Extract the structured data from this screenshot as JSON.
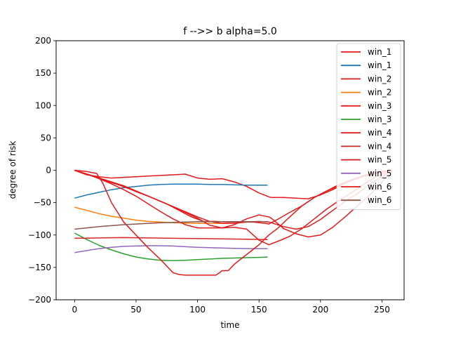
{
  "chart_data": {
    "type": "line",
    "title": "f -->> b  alpha=5.0",
    "xlabel": "time",
    "ylabel": "degree of risk",
    "xlim": [
      -15,
      268
    ],
    "ylim": [
      -200,
      200
    ],
    "xticks": [
      0,
      50,
      100,
      150,
      200,
      250
    ],
    "yticks": [
      -200,
      -150,
      -100,
      -50,
      0,
      50,
      100,
      150,
      200
    ],
    "grid": false,
    "legend_position": "top-right",
    "series": [
      {
        "name": "win_1",
        "color": "#e41a1c",
        "x": [
          0,
          10,
          20,
          30,
          40,
          50,
          60,
          70,
          80,
          90,
          100,
          110,
          120,
          130,
          140,
          150,
          158,
          160,
          165,
          170,
          180,
          190,
          200,
          210,
          220,
          230,
          240,
          250,
          258
        ],
        "y": [
          0,
          -7,
          -10,
          -12,
          -11,
          -10,
          -9,
          -8,
          -7,
          -6,
          -12,
          -14,
          -13,
          -18,
          -25,
          -35,
          -41,
          -42,
          -42,
          -42,
          -43,
          -44,
          -38,
          -30,
          -20,
          -12,
          -7,
          -3,
          0
        ]
      },
      {
        "name": "win_1",
        "color": "#1f77b4",
        "x": [
          0,
          10,
          20,
          30,
          40,
          50,
          60,
          70,
          80,
          90,
          100,
          110,
          120,
          130,
          140,
          150,
          157
        ],
        "y": [
          -43,
          -38,
          -34,
          -30,
          -27,
          -25,
          -23,
          -22,
          -21.5,
          -21.5,
          -21.5,
          -22,
          -22,
          -22.5,
          -23,
          -23,
          -23
        ]
      },
      {
        "name": "win_2",
        "color": "#e41a1c",
        "x": [
          0,
          10,
          18,
          25,
          35,
          45,
          55,
          65,
          75,
          85,
          95,
          105,
          115,
          125,
          135,
          145,
          155,
          158,
          165,
          175,
          185,
          195,
          205,
          215,
          225,
          235,
          245,
          258
        ],
        "y": [
          0,
          -6,
          -10,
          -16,
          -22,
          -29,
          -36,
          -44,
          -52,
          -62,
          -72,
          -79,
          -79,
          -80,
          -80,
          -80,
          -82,
          -83,
          -76,
          -65,
          -55,
          -42,
          -32,
          -24,
          -16,
          -9,
          -4,
          0
        ]
      },
      {
        "name": "win_2",
        "color": "#ff7f0e",
        "x": [
          0,
          10,
          20,
          30,
          40,
          50,
          60,
          70,
          80,
          90,
          100,
          110,
          120,
          125
        ],
        "y": [
          -57,
          -62,
          -67,
          -71,
          -74,
          -77,
          -79,
          -80,
          -81,
          -81.5,
          -82,
          -82,
          -82,
          -82
        ]
      },
      {
        "name": "win_3",
        "color": "#e41a1c",
        "x": [
          0,
          10,
          20,
          30,
          40,
          50,
          60,
          70,
          80,
          90,
          100,
          110,
          120,
          130,
          140,
          150,
          158,
          160,
          165,
          170,
          180,
          190,
          200,
          210,
          220,
          230,
          240,
          250,
          258
        ],
        "y": [
          0,
          -6,
          -12,
          -18,
          -24,
          -32,
          -40,
          -48,
          -56,
          -64,
          -72,
          -79,
          -82,
          -82,
          -80,
          -79,
          -80,
          -81,
          -84,
          -87,
          -91,
          -87,
          -76,
          -62,
          -48,
          -36,
          -22,
          -10,
          0
        ]
      },
      {
        "name": "win_3",
        "color": "#2ca02c",
        "x": [
          0,
          10,
          20,
          30,
          40,
          50,
          60,
          70,
          80,
          90,
          100,
          110,
          120,
          130,
          140,
          150,
          157
        ],
        "y": [
          -97,
          -107,
          -116,
          -123,
          -129,
          -134,
          -137,
          -139,
          -139.5,
          -139,
          -138,
          -137,
          -136,
          -135.5,
          -135,
          -134.5,
          -134
        ]
      },
      {
        "name": "win_4",
        "color": "#e41a1c",
        "x": [
          0,
          10,
          20,
          30,
          40,
          50,
          60,
          70,
          80,
          90,
          100,
          110,
          120,
          130,
          140,
          150,
          158,
          160,
          165,
          170,
          180,
          190,
          200,
          210,
          220,
          230,
          240,
          250,
          258
        ],
        "y": [
          0,
          -6,
          -12,
          -18,
          -25,
          -33,
          -40,
          -48,
          -56,
          -65,
          -74,
          -85,
          -89,
          -84,
          -75,
          -69,
          -72,
          -74,
          -82,
          -90,
          -98,
          -103,
          -100,
          -88,
          -72,
          -55,
          -38,
          -18,
          0
        ]
      },
      {
        "name": "win_4",
        "color": "#d62728",
        "x": [
          0,
          20,
          40,
          60,
          80,
          100,
          120,
          140,
          157
        ],
        "y": [
          -105,
          -104.5,
          -104,
          -104.5,
          -105,
          -105.5,
          -106,
          -106.5,
          -107
        ]
      },
      {
        "name": "win_5",
        "color": "#e41a1c",
        "x": [
          0,
          10,
          20,
          30,
          40,
          50,
          60,
          70,
          80,
          90,
          100,
          110,
          120,
          130,
          140,
          150,
          158,
          165,
          175,
          185,
          195,
          205,
          215,
          225,
          235,
          245,
          258
        ],
        "y": [
          0,
          -6,
          -13,
          -21,
          -30,
          -40,
          -52,
          -64,
          -75,
          -84,
          -89,
          -89,
          -89,
          -88,
          -91,
          -108,
          -115,
          -110,
          -102,
          -90,
          -75,
          -60,
          -47,
          -35,
          -22,
          -10,
          0
        ]
      },
      {
        "name": "win_5",
        "color": "#9467bd",
        "x": [
          0,
          10,
          20,
          30,
          40,
          50,
          60,
          70,
          80,
          90,
          100,
          110,
          120,
          130,
          140,
          150,
          157
        ],
        "y": [
          -127,
          -124,
          -121,
          -119,
          -117.5,
          -117,
          -116.5,
          -116.5,
          -117,
          -118,
          -119,
          -119.5,
          -120,
          -120.5,
          -121,
          -121,
          -121
        ]
      },
      {
        "name": "win_6",
        "color": "#e41a1c",
        "x": [
          0,
          10,
          18,
          23,
          30,
          40,
          50,
          60,
          70,
          80,
          85,
          90,
          100,
          105,
          110,
          115,
          118,
          120,
          125,
          130,
          140,
          150,
          158,
          165,
          175,
          185,
          195,
          205,
          215,
          225,
          235,
          245,
          258
        ],
        "y": [
          0,
          -2,
          -5,
          -20,
          -50,
          -80,
          -100,
          -120,
          -138,
          -158,
          -161,
          -162,
          -162,
          -162,
          -162,
          -162,
          -158,
          -155,
          -155,
          -145,
          -130,
          -115,
          -100,
          -90,
          -72,
          -55,
          -42,
          -32,
          -22,
          -15,
          -8,
          -3,
          0
        ]
      },
      {
        "name": "win_6",
        "color": "#8c564b",
        "x": [
          0,
          10,
          20,
          30,
          40,
          50,
          60,
          70,
          80,
          90,
          100,
          110,
          120,
          130,
          140,
          150,
          157
        ],
        "y": [
          -91,
          -89,
          -87,
          -85.5,
          -84,
          -83,
          -82,
          -81,
          -80.5,
          -80,
          -79.5,
          -79.5,
          -79.5,
          -79.5,
          -79.5,
          -79.5,
          -79.5
        ]
      }
    ]
  }
}
